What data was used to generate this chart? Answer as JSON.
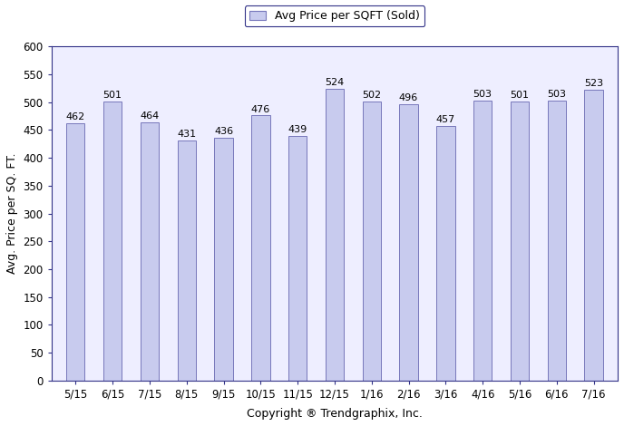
{
  "categories": [
    "5/15",
    "6/15",
    "7/15",
    "8/15",
    "9/15",
    "10/15",
    "11/15",
    "12/15",
    "1/16",
    "2/16",
    "3/16",
    "4/16",
    "5/16",
    "6/16",
    "7/16"
  ],
  "values": [
    462,
    501,
    464,
    431,
    436,
    476,
    439,
    524,
    502,
    496,
    457,
    503,
    501,
    503,
    523
  ],
  "bar_color": "#c8cbee",
  "bar_edgecolor": "#7777bb",
  "plot_bg_color": "#eeeeff",
  "ylim": [
    0,
    600
  ],
  "yticks": [
    0,
    50,
    100,
    150,
    200,
    250,
    300,
    350,
    400,
    450,
    500,
    550,
    600
  ],
  "ylabel": "Avg. Price per SQ. FT.",
  "xlabel": "Copyright ® Trendgraphix, Inc.",
  "legend_label": "Avg Price per SQFT (Sold)",
  "legend_facecolor": "#c8cbee",
  "legend_edgecolor": "#7777bb",
  "bar_label_fontsize": 8,
  "ylabel_fontsize": 9,
  "xlabel_fontsize": 9,
  "tick_fontsize": 8.5,
  "legend_fontsize": 9,
  "background_color": "#ffffff",
  "bar_width": 0.5
}
